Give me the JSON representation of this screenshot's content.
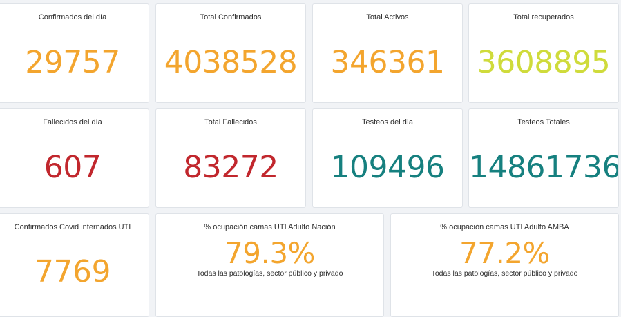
{
  "colors": {
    "orange": "#f3a52e",
    "yellow_green": "#cfdb3b",
    "red": "#c1272d",
    "teal": "#16807f"
  },
  "cards": [
    {
      "title": "Confirmados del día",
      "value": "29757"
    },
    {
      "title": "Total Confirmados",
      "value": "4038528"
    },
    {
      "title": "Total Activos",
      "value": "346361"
    },
    {
      "title": "Total recuperados",
      "value": "3608895"
    },
    {
      "title": "Fallecidos del día",
      "value": "607"
    },
    {
      "title": "Total Fallecidos",
      "value": "83272"
    },
    {
      "title": "Testeos del día",
      "value": "109496"
    },
    {
      "title": "Testeos Totales",
      "value": "14861736"
    },
    {
      "title": "Confirmados Covid internados UTI",
      "value": "7769"
    },
    {
      "title": "% ocupación camas UTI Adulto Nación",
      "value": "79.3%",
      "subtitle": "Todas las patologías, sector público y privado"
    },
    {
      "title": "% ocupación camas UTI Adulto AMBA",
      "value": "77.2%",
      "subtitle": "Todas las patologías, sector público y privado"
    }
  ]
}
